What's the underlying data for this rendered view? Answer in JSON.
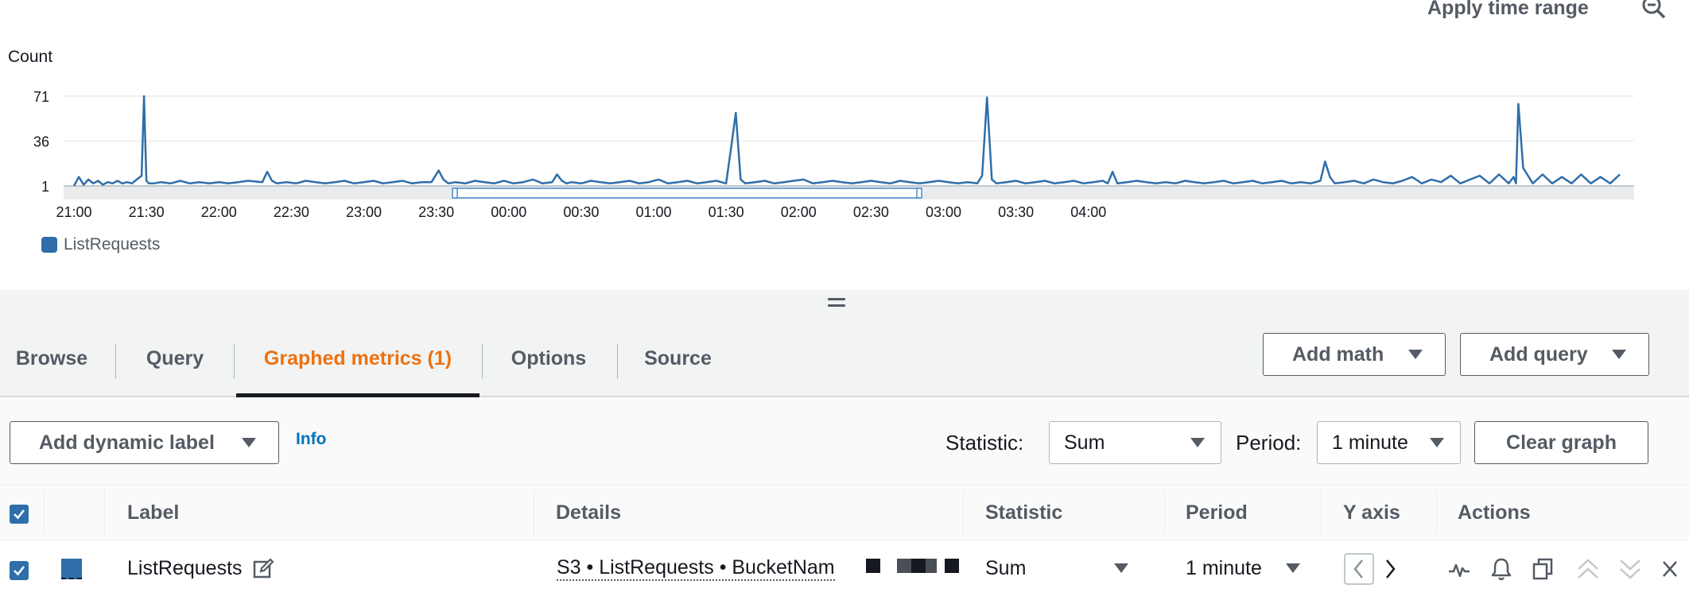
{
  "chart": {
    "apply_time_range_label": "Apply time range",
    "zoom_icon": "zoom-out-icon",
    "accent_color": "#2f6ea9"
  },
  "chart_data": {
    "type": "line",
    "title": "",
    "ylabel": "Count",
    "xlabel": "",
    "y_ticks": [
      "71",
      "36",
      "1"
    ],
    "ylim": [
      1,
      71
    ],
    "x_ticks": [
      "21:00",
      "21:30",
      "22:00",
      "22:30",
      "23:00",
      "23:30",
      "00:00",
      "00:30",
      "01:00",
      "01:30",
      "02:00",
      "02:30",
      "03:00",
      "03:30",
      "04:00"
    ],
    "grid": "horizontal",
    "legend_position": "bottom-left",
    "series": [
      {
        "name": "ListRequests",
        "color": "#2f6ea9",
        "x_minutes_from_2100": [
          0,
          2,
          4,
          6,
          8,
          10,
          12,
          14,
          16,
          18,
          20,
          22,
          24,
          26,
          28,
          29,
          30,
          31,
          33,
          36,
          40,
          44,
          48,
          52,
          56,
          60,
          64,
          68,
          72,
          78,
          80,
          82,
          84,
          88,
          92,
          96,
          100,
          104,
          108,
          112,
          116,
          120,
          124,
          128,
          132,
          136,
          140,
          144,
          148,
          151,
          153,
          155,
          158,
          162,
          166,
          170,
          174,
          178,
          182,
          186,
          190,
          194,
          198,
          200,
          202,
          204,
          206,
          210,
          214,
          218,
          222,
          226,
          230,
          234,
          238,
          242,
          246,
          250,
          254,
          258,
          262,
          266,
          270,
          272,
          274,
          276,
          278,
          282,
          286,
          290,
          294,
          298,
          302,
          306,
          310,
          314,
          318,
          322,
          326,
          330,
          334,
          338,
          342,
          346,
          350,
          354,
          358,
          362,
          366,
          370,
          374,
          376,
          378,
          380,
          382,
          386,
          390,
          394,
          398,
          402,
          406,
          410,
          414,
          418,
          422,
          426,
          428,
          430,
          432,
          436,
          440,
          444,
          448,
          452,
          456,
          460,
          464,
          468,
          472,
          476,
          480,
          484,
          488,
          492,
          496,
          500,
          504,
          508,
          512,
          516,
          518,
          520,
          522,
          526,
          530,
          534,
          538,
          542,
          546,
          550,
          554,
          558,
          562,
          566,
          570,
          574,
          578,
          582,
          586,
          590,
          594,
          596,
          597,
          598,
          600,
          604,
          608,
          612,
          616,
          620,
          624,
          628,
          632,
          636,
          640
        ],
        "values": [
          1,
          8,
          2,
          6,
          3,
          5,
          2,
          4,
          3,
          5,
          3,
          4,
          3,
          6,
          9,
          71,
          5,
          3,
          3,
          4,
          3,
          5,
          3,
          4,
          3,
          4,
          3,
          4,
          5,
          4,
          12,
          5,
          3,
          4,
          3,
          5,
          4,
          3,
          4,
          5,
          3,
          4,
          5,
          3,
          4,
          5,
          3,
          4,
          4,
          13,
          6,
          3,
          4,
          3,
          5,
          4,
          3,
          5,
          3,
          4,
          6,
          3,
          4,
          10,
          5,
          3,
          4,
          3,
          5,
          4,
          3,
          4,
          5,
          3,
          4,
          6,
          3,
          4,
          5,
          3,
          4,
          5,
          3,
          30,
          58,
          6,
          3,
          4,
          5,
          3,
          4,
          5,
          6,
          3,
          4,
          5,
          4,
          3,
          4,
          5,
          4,
          3,
          5,
          4,
          3,
          4,
          5,
          4,
          3,
          4,
          3,
          9,
          70,
          6,
          3,
          4,
          5,
          3,
          4,
          5,
          3,
          4,
          5,
          3,
          4,
          5,
          3,
          12,
          3,
          4,
          5,
          4,
          3,
          4,
          3,
          5,
          4,
          3,
          4,
          5,
          3,
          4,
          5,
          3,
          4,
          5,
          3,
          4,
          3,
          5,
          20,
          8,
          3,
          4,
          5,
          3,
          6,
          4,
          3,
          5,
          8,
          3,
          6,
          4,
          9,
          3,
          6,
          9,
          3,
          10,
          3,
          8,
          3,
          65,
          15,
          3,
          10,
          3,
          8,
          3,
          10,
          3,
          8,
          3,
          10,
          3,
          6,
          3,
          8
        ]
      }
    ]
  },
  "splitter": {
    "handle_icon": "drag-handle-icon"
  },
  "tabs": {
    "items": [
      {
        "label": "Browse"
      },
      {
        "label": "Query"
      },
      {
        "label": "Graphed metrics (1)"
      },
      {
        "label": "Options"
      },
      {
        "label": "Source"
      }
    ],
    "active_index": 2,
    "active_color": "#ec7211",
    "add_math_label": "Add math",
    "add_query_label": "Add query"
  },
  "options": {
    "add_dynamic_label": "Add dynamic label",
    "info_label": "Info",
    "statistic_label": "Statistic:",
    "statistic_value": "Sum",
    "period_label": "Period:",
    "period_value": "1 minute",
    "clear_graph_label": "Clear graph"
  },
  "table": {
    "headers": {
      "label": "Label",
      "details": "Details",
      "statistic": "Statistic",
      "period": "Period",
      "y_axis": "Y axis",
      "actions": "Actions"
    },
    "rows": [
      {
        "checked": true,
        "color": "#2f6ea9",
        "label": "ListRequests",
        "details": "S3 • ListRequests • BucketNam",
        "statistic": "Sum",
        "period": "1 minute",
        "y_axis": [
          "chevron-left-icon",
          "chevron-right-icon"
        ],
        "actions": [
          "graph-icon",
          "bell-icon",
          "copy-icon",
          "move-up-icon",
          "move-down-icon",
          "remove-icon"
        ]
      }
    ]
  }
}
